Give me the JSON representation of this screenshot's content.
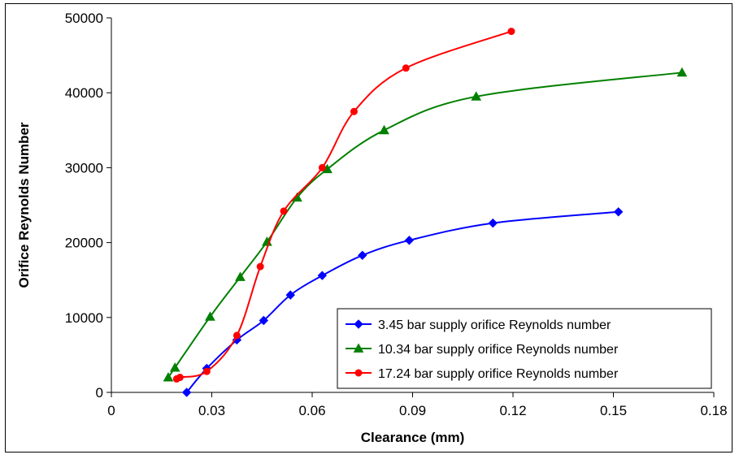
{
  "chart_data": {
    "type": "line",
    "title": "",
    "xlabel": "Clearance (mm)",
    "ylabel": "Orifice Reynolds Number",
    "xlim": [
      0,
      0.18
    ],
    "ylim": [
      0,
      50000
    ],
    "xticks": [
      0,
      0.03,
      0.06,
      0.09,
      0.12,
      0.15,
      0.18
    ],
    "xtick_labels": [
      "0",
      "0.03",
      "0.06",
      "0.09",
      "0.12",
      "0.15",
      "0.18"
    ],
    "yticks": [
      0,
      10000,
      20000,
      30000,
      40000,
      50000
    ],
    "ytick_labels": [
      "0",
      "10000",
      "20000",
      "30000",
      "40000",
      "50000"
    ],
    "grid": false,
    "legend_position": "bottom-right",
    "series": [
      {
        "name": "3.45 bar supply orifice Reynolds number",
        "color": "#0000ff",
        "marker": "diamond",
        "x": [
          0.0225,
          0.0285,
          0.0375,
          0.0455,
          0.0535,
          0.063,
          0.075,
          0.089,
          0.114,
          0.1515
        ],
        "y": [
          0,
          3200,
          7000,
          9600,
          13000,
          15600,
          18300,
          20300,
          22600,
          24100
        ]
      },
      {
        "name": "10.34  bar supply orifice Reynolds number",
        "color": "#008000",
        "marker": "triangle",
        "x": [
          0.017,
          0.019,
          0.0295,
          0.0385,
          0.0465,
          0.0555,
          0.0645,
          0.0815,
          0.109,
          0.1705
        ],
        "y": [
          2000,
          3300,
          10100,
          15400,
          20100,
          26000,
          29800,
          35000,
          39500,
          42700
        ]
      },
      {
        "name": "17.24 bar supply orifice Reynolds number",
        "color": "#ff0000",
        "marker": "circle",
        "x": [
          0.0195,
          0.0205,
          0.0285,
          0.0375,
          0.0445,
          0.0515,
          0.063,
          0.0725,
          0.088,
          0.1195
        ],
        "y": [
          1800,
          2000,
          2800,
          7600,
          16800,
          24200,
          30000,
          37500,
          43300,
          48200
        ]
      }
    ]
  }
}
